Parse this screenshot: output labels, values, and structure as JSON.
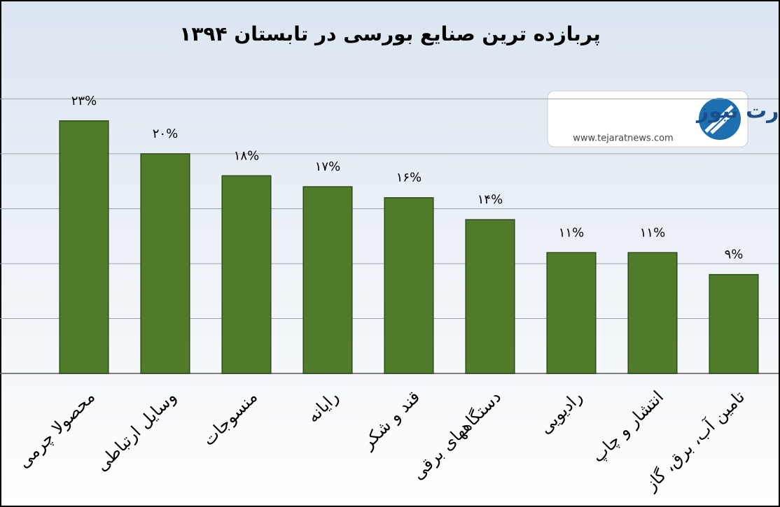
{
  "chart_data": {
    "type": "bar",
    "title": "پربازده ترین صنایع بورسی در  تابستان ۱۳۹۴",
    "categories": [
      "محصولا چرمی",
      "وسایل ارتباطی",
      "منسوجات",
      "رایانه",
      "قند و شکر",
      "دستگاههای برقی",
      "رادیویی",
      "انتشار و چاپ",
      "تامین آب، برق، گاز"
    ],
    "values": [
      23,
      20,
      18,
      17,
      16,
      14,
      11,
      11,
      9
    ],
    "value_labels": [
      "۲۳%",
      "۲۰%",
      "۱۸%",
      "۱۷%",
      "۱۶%",
      "۱۴%",
      "۱۱%",
      "۱۱%",
      "۹%"
    ],
    "color": "#4f7b2b",
    "ylim": [
      0,
      27
    ],
    "yticks": [
      0,
      5,
      10,
      15,
      20,
      25
    ],
    "grid": true
  },
  "logo": {
    "name": "تجارت نیوز",
    "url": "www.tejaratnews.com"
  }
}
